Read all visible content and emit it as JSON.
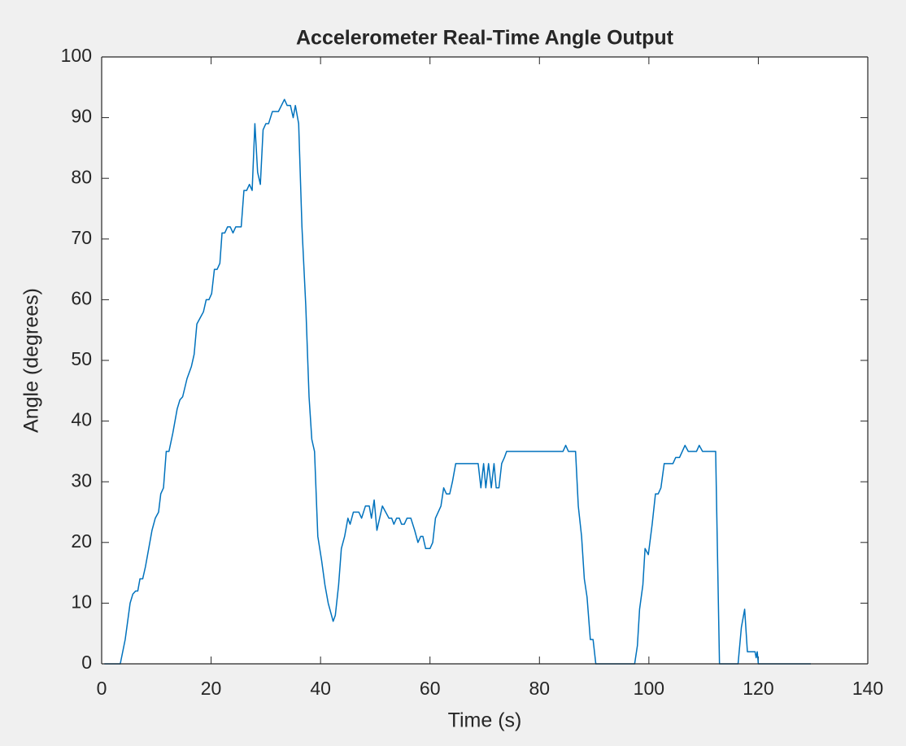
{
  "chart_data": {
    "type": "line",
    "title": "Accelerometer Real-Time Angle Output",
    "xlabel": "Time (s)",
    "ylabel": "Angle (degrees)",
    "xlim": [
      0,
      140
    ],
    "xticks": [
      0,
      20,
      40,
      60,
      80,
      100,
      120,
      140
    ],
    "ylim": [
      0,
      100
    ],
    "yticks": [
      0,
      10,
      20,
      30,
      40,
      50,
      60,
      70,
      80,
      90,
      100
    ],
    "box": true,
    "series": [
      {
        "color": "#0072bd",
        "x": [
          0.5,
          3.4,
          4.3,
          5.2,
          5.7,
          6.2,
          6.6,
          7.0,
          7.5,
          8.0,
          8.6,
          9.2,
          9.8,
          10.4,
          10.8,
          11.3,
          11.8,
          12.3,
          13.0,
          13.8,
          14.3,
          14.8,
          15.6,
          16.4,
          16.9,
          17.4,
          18.0,
          18.6,
          19.1,
          19.6,
          20.1,
          20.6,
          21.1,
          21.6,
          22.0,
          22.5,
          23.0,
          23.5,
          24.0,
          24.5,
          25.5,
          26.0,
          26.5,
          27.0,
          27.5,
          28.0,
          28.5,
          29.0,
          29.5,
          30.0,
          30.5,
          31.2,
          32.3,
          33.4,
          33.9,
          34.5,
          35.0,
          35.4,
          36.0,
          36.6,
          37.3,
          37.9,
          38.4,
          38.9,
          39.5,
          40.2,
          40.8,
          41.4,
          42.0,
          42.3,
          42.7,
          43.3,
          43.8,
          44.4,
          45.0,
          45.4,
          46.0,
          47.0,
          47.5,
          48.2,
          48.9,
          49.3,
          49.8,
          50.3,
          50.8,
          51.3,
          51.9,
          52.5,
          53.0,
          53.4,
          53.9,
          54.4,
          54.8,
          55.3,
          55.8,
          56.5,
          57.2,
          57.8,
          58.3,
          58.7,
          59.2,
          60.0,
          60.5,
          61.0,
          62.0,
          62.5,
          63.0,
          63.6,
          64.1,
          64.7,
          68.8,
          69.3,
          69.8,
          70.2,
          70.7,
          71.2,
          71.7,
          72.1,
          72.6,
          73.1,
          73.6,
          74.0,
          84.3,
          84.8,
          85.3,
          86.6,
          87.1,
          87.7,
          88.2,
          88.7,
          89.3,
          89.8,
          90.3,
          97.4,
          97.9,
          98.3,
          98.9,
          99.3,
          99.9,
          100.6,
          101.2,
          101.7,
          102.2,
          102.8,
          104.4,
          104.9,
          105.6,
          106.1,
          106.6,
          107.2,
          108.7,
          109.2,
          109.8,
          112.2,
          112.5,
          112.9,
          116.3,
          116.9,
          117.5,
          118.0,
          119.4,
          119.6,
          119.8,
          120.0,
          129.6
        ],
        "values": [
          0,
          0,
          4,
          10,
          11.5,
          12,
          12,
          14,
          14,
          16,
          19,
          22,
          24,
          25,
          28,
          29,
          35,
          35,
          38,
          42,
          43.5,
          44,
          47,
          49,
          51,
          56,
          57,
          58,
          60,
          60,
          61,
          65,
          65,
          66,
          71,
          71,
          72,
          72,
          71,
          72,
          72,
          78,
          78,
          79,
          78,
          89,
          81,
          79,
          88,
          89,
          89,
          91,
          91,
          93,
          92,
          92,
          90,
          92,
          89,
          72,
          59,
          44,
          37,
          35,
          21,
          17,
          13,
          10,
          8,
          7,
          8,
          13,
          19,
          21,
          24,
          23,
          25,
          25,
          24,
          26,
          26,
          24,
          27,
          22,
          24,
          26,
          25,
          24,
          24,
          23,
          24,
          24,
          23,
          23,
          24,
          24,
          22,
          20,
          21,
          21,
          19,
          19,
          20,
          24,
          26,
          29,
          28,
          28,
          30,
          33,
          33,
          29,
          33,
          29,
          33,
          29,
          33,
          29,
          29,
          33,
          34,
          35,
          35,
          36,
          35,
          35,
          26,
          21,
          14,
          11,
          4,
          4,
          0,
          0,
          3,
          9,
          13,
          19,
          18,
          23,
          28,
          28,
          29,
          33,
          33,
          34,
          34,
          35,
          36,
          35,
          35,
          36,
          35,
          35,
          20,
          0,
          0,
          6,
          9,
          2,
          2,
          1,
          2,
          0,
          0
        ]
      }
    ]
  }
}
